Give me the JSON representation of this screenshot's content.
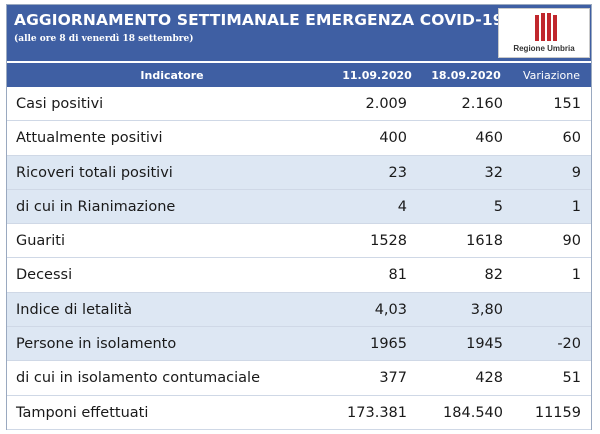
{
  "header": {
    "title": "AGGIORNAMENTO SETTIMANALE EMERGENZA COVID-19",
    "subtitle": "(alle ore 8 di venerdì 18 settembre)",
    "logo_text": "Regione Umbria"
  },
  "columns": {
    "indicator": "Indicatore",
    "date1": "11.09.2020",
    "date2": "18.09.2020",
    "variation": "Variazione"
  },
  "rows": [
    {
      "label": "Casi positivi",
      "v1": "2.009",
      "v2": "2.160",
      "var": "151"
    },
    {
      "label": "Attualmente positivi",
      "v1": "400",
      "v2": "460",
      "var": "60"
    },
    {
      "label": "Ricoveri totali positivi",
      "v1": "23",
      "v2": "32",
      "var": "9"
    },
    {
      "label": "di cui in Rianimazione",
      "v1": "4",
      "v2": "5",
      "var": "1"
    },
    {
      "label": "Guariti",
      "v1": "1528",
      "v2": "1618",
      "var": "90"
    },
    {
      "label": "Decessi",
      "v1": "81",
      "v2": "82",
      "var": "1"
    },
    {
      "label": "Indice di letalità",
      "v1": "4,03",
      "v2": "3,80",
      "var": ""
    },
    {
      "label": "Persone in isolamento",
      "v1": "1965",
      "v2": "1945",
      "var": "-20"
    },
    {
      "label": "di cui in isolamento contumaciale",
      "v1": "377",
      "v2": "428",
      "var": "51"
    },
    {
      "label": "Tamponi effettuati",
      "v1": "173.381",
      "v2": "184.540",
      "var": "11159"
    }
  ],
  "colors": {
    "header_bg": "#3f5fa3",
    "alt_row_bg": "#dde7f3",
    "logo_red": "#c0272d"
  },
  "icons": {
    "logo": "regione-umbria-logo-icon"
  }
}
